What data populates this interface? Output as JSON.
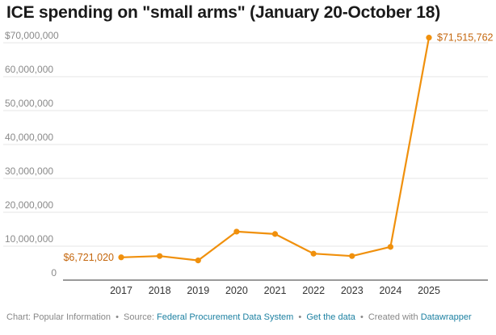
{
  "title": "ICE spending on \"small arms\" (January 20-October 18)",
  "chart_data": {
    "type": "line",
    "title": "ICE spending on \"small arms\" (January 20-October 18)",
    "xlabel": "",
    "ylabel": "",
    "categories": [
      "2017",
      "2018",
      "2019",
      "2020",
      "2021",
      "2022",
      "2023",
      "2024",
      "2025"
    ],
    "series": [
      {
        "name": "ICE spending on small arms",
        "values": [
          6721020,
          7100000,
          5800000,
          14300000,
          13600000,
          7800000,
          7100000,
          9800000,
          71515762
        ]
      }
    ],
    "ylim": [
      0,
      70000000
    ],
    "y_ticks": [
      0,
      10000000,
      20000000,
      30000000,
      40000000,
      50000000,
      60000000,
      70000000
    ],
    "y_tick_labels": [
      "0",
      "10,000,000",
      "20,000,000",
      "30,000,000",
      "40,000,000",
      "50,000,000",
      "60,000,000",
      "$70,000,000"
    ],
    "annotations": [
      {
        "index": 0,
        "text": "$6,721,020"
      },
      {
        "index": 8,
        "text": "$71,515,762"
      }
    ],
    "grid": true,
    "legend": "none"
  },
  "colors": {
    "line": "#f0900c",
    "label": "#c4660c",
    "grid": "#e6e6e6",
    "axis": "#333333",
    "link": "#1d81a2",
    "footer_text": "#888888"
  },
  "footer": {
    "chart_by": "Chart: Popular Information",
    "source_prefix": "Source:",
    "source_link": "Federal Procurement Data System",
    "data_link": "Get the data",
    "created_prefix": "Created with",
    "created_link": "Datawrapper",
    "separator": "•"
  }
}
